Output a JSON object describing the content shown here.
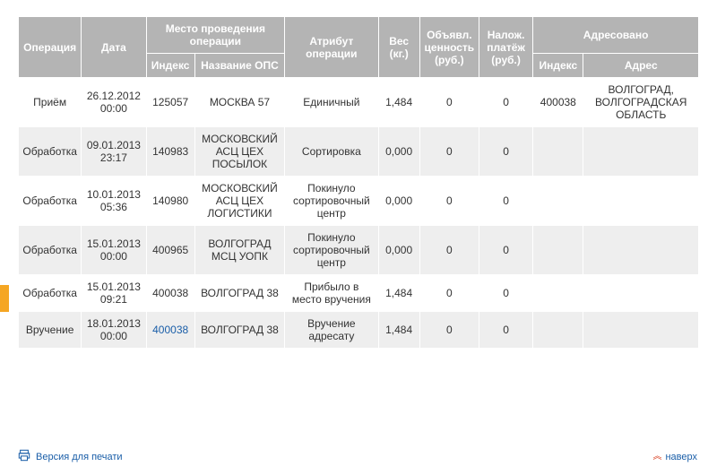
{
  "table": {
    "headers": {
      "operation": "Операция",
      "date": "Дата",
      "place_group": "Место проведения операции",
      "index": "Индекс",
      "ops_name": "Название ОПС",
      "attribute": "Атрибут операции",
      "weight": "Вес (кг.)",
      "declared_value": "Объявл. ценность (руб.)",
      "cod": "Налож. платёж (руб.)",
      "addressed_group": "Адресовано",
      "addr_index": "Индекс",
      "addr_address": "Адрес"
    },
    "rows": [
      {
        "operation": "Приём",
        "date": "26.12.2012 00:00",
        "index": "125057",
        "ops_name": "МОСКВА 57",
        "attribute": "Единичный",
        "weight": "1,484",
        "declared_value": "0",
        "cod": "0",
        "addr_index": "400038",
        "addr_address": "ВОЛГОГРАД, ВОЛГОГРАДСКАЯ ОБЛАСТЬ",
        "index_is_link": false
      },
      {
        "operation": "Обработка",
        "date": "09.01.2013 23:17",
        "index": "140983",
        "ops_name": "МОСКОВСКИЙ АСЦ ЦЕХ ПОСЫЛОК",
        "attribute": "Сортировка",
        "weight": "0,000",
        "declared_value": "0",
        "cod": "0",
        "addr_index": "",
        "addr_address": "",
        "index_is_link": false
      },
      {
        "operation": "Обработка",
        "date": "10.01.2013 05:36",
        "index": "140980",
        "ops_name": "МОСКОВСКИЙ АСЦ ЦЕХ ЛОГИСТИКИ",
        "attribute": "Покинуло сортировочный центр",
        "weight": "0,000",
        "declared_value": "0",
        "cod": "0",
        "addr_index": "",
        "addr_address": "",
        "index_is_link": false
      },
      {
        "operation": "Обработка",
        "date": "15.01.2013 00:00",
        "index": "400965",
        "ops_name": "ВОЛГОГРАД МСЦ УОПК",
        "attribute": "Покинуло сортировочный центр",
        "weight": "0,000",
        "declared_value": "0",
        "cod": "0",
        "addr_index": "",
        "addr_address": "",
        "index_is_link": false
      },
      {
        "operation": "Обработка",
        "date": "15.01.2013 09:21",
        "index": "400038",
        "ops_name": "ВОЛГОГРАД 38",
        "attribute": "Прибыло в место вручения",
        "weight": "1,484",
        "declared_value": "0",
        "cod": "0",
        "addr_index": "",
        "addr_address": "",
        "index_is_link": false
      },
      {
        "operation": "Вручение",
        "date": "18.01.2013 00:00",
        "index": "400038",
        "ops_name": "ВОЛГОГРАД 38",
        "attribute": "Вручение адресату",
        "weight": "1,484",
        "declared_value": "0",
        "cod": "0",
        "addr_index": "",
        "addr_address": "",
        "index_is_link": true
      }
    ]
  },
  "footer": {
    "print_label": "Версия для печати",
    "totop_label": "наверх"
  },
  "colors": {
    "header_bg": "#b4b4b4",
    "row_alt_bg": "#eeeeee",
    "link": "#1a5ea8",
    "accent": "#f5a623",
    "chevron": "#d73a1a"
  }
}
